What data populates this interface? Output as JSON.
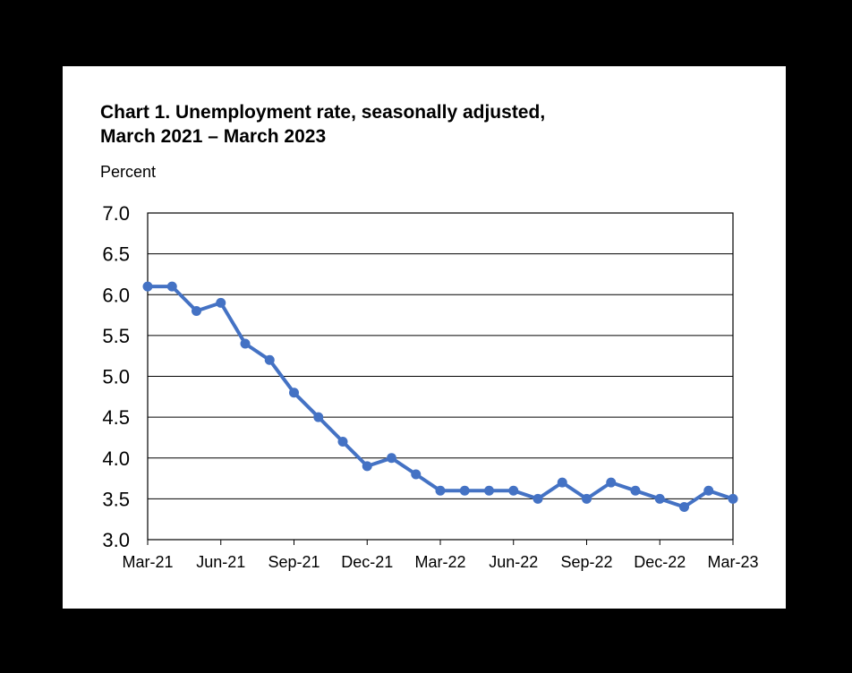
{
  "chart_data": {
    "type": "line",
    "title": "Chart 1. Unemployment rate, seasonally adjusted,",
    "subtitle": "March 2021 – March 2023",
    "ylabel": "Percent",
    "xlabel": "",
    "ylim": [
      3.0,
      7.0
    ],
    "yticks": [
      "3.0",
      "3.5",
      "4.0",
      "4.5",
      "5.0",
      "5.5",
      "6.0",
      "6.5",
      "7.0"
    ],
    "grid": true,
    "x": [
      "Mar-21",
      "Apr-21",
      "May-21",
      "Jun-21",
      "Jul-21",
      "Aug-21",
      "Sep-21",
      "Oct-21",
      "Nov-21",
      "Dec-21",
      "Jan-22",
      "Feb-22",
      "Mar-22",
      "Apr-22",
      "May-22",
      "Jun-22",
      "Jul-22",
      "Aug-22",
      "Sep-22",
      "Oct-22",
      "Nov-22",
      "Dec-22",
      "Jan-23",
      "Feb-23",
      "Mar-23"
    ],
    "xtick_labels": [
      "Mar-21",
      "Jun-21",
      "Sep-21",
      "Dec-21",
      "Mar-22",
      "Jun-22",
      "Sep-22",
      "Dec-22",
      "Mar-23"
    ],
    "series": [
      {
        "color": "#4472c4",
        "values": [
          6.1,
          6.1,
          5.8,
          5.9,
          5.4,
          5.2,
          4.8,
          4.5,
          4.2,
          3.9,
          4.0,
          3.8,
          3.6,
          3.6,
          3.6,
          3.6,
          3.5,
          3.7,
          3.5,
          3.7,
          3.6,
          3.5,
          3.4,
          3.6,
          3.5
        ]
      }
    ]
  }
}
